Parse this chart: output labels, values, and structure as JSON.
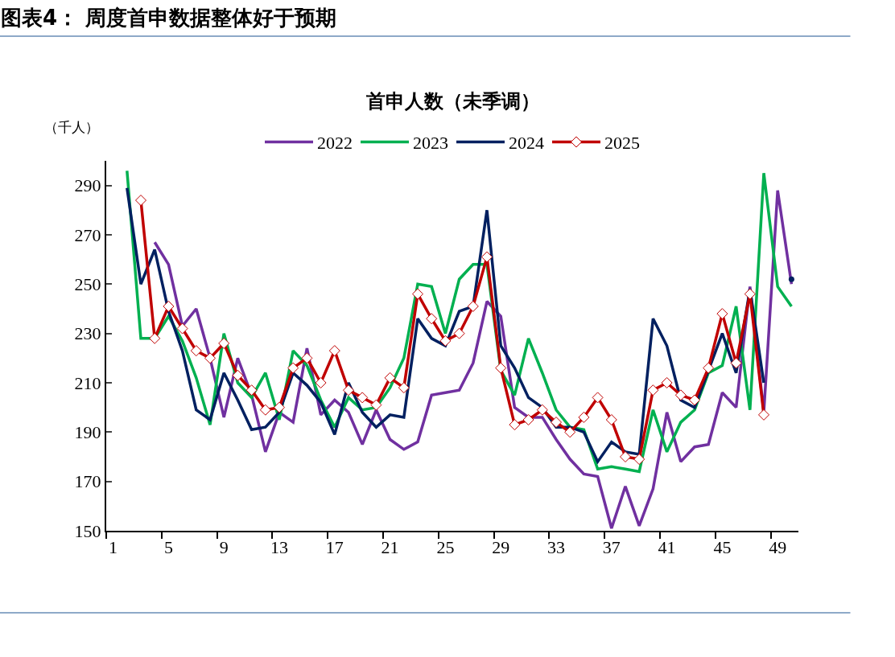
{
  "chart_data": {
    "type": "line",
    "title": "图表4： 周度首申数据整体好于预期",
    "subtitle": "首申人数（未季调）",
    "ylabel": "（千人）",
    "categories": [
      "1",
      null,
      null,
      null,
      "5",
      null,
      null,
      null,
      "9",
      null,
      null,
      null,
      "13",
      null,
      null,
      null,
      "17",
      null,
      null,
      null,
      "21",
      null,
      null,
      null,
      "25",
      null,
      null,
      null,
      "29",
      null,
      null,
      null,
      "33",
      null,
      null,
      null,
      "37",
      null,
      null,
      null,
      "41",
      null,
      null,
      null,
      "45",
      null,
      null,
      null,
      "49",
      null
    ],
    "ylim": [
      150,
      300
    ],
    "yticks": [
      150,
      170,
      190,
      210,
      230,
      250,
      270,
      290
    ],
    "legend": "top",
    "series": [
      {
        "name": "2022",
        "color": "#7030a0",
        "marker": "none",
        "values": [
          null,
          null,
          null,
          267,
          258,
          233,
          240,
          220,
          196,
          220,
          205,
          182,
          198,
          194,
          224,
          197,
          203,
          198,
          185,
          199,
          187,
          183,
          186,
          205,
          206,
          207,
          218,
          243,
          237,
          200,
          196,
          196,
          187,
          179,
          173,
          172,
          151,
          168,
          152,
          167,
          198,
          178,
          184,
          185,
          206,
          200,
          249,
          198,
          288,
          250
        ]
      },
      {
        "name": "2023",
        "color": "#00b050",
        "marker": "none",
        "values": [
          null,
          296,
          228,
          228,
          237,
          227,
          212,
          193,
          230,
          210,
          204,
          214,
          195,
          223,
          217,
          203,
          192,
          204,
          199,
          200,
          208,
          220,
          250,
          249,
          230,
          252,
          258,
          258,
          215,
          205,
          228,
          214,
          199,
          192,
          191,
          175,
          176,
          175,
          174,
          199,
          182,
          194,
          199,
          214,
          217,
          241,
          199,
          295,
          249,
          241
        ]
      },
      {
        "name": "2024",
        "color": "#002060",
        "marker": "none",
        "values": [
          null,
          289,
          250,
          264,
          239,
          223,
          199,
          195,
          214,
          203,
          191,
          192,
          198,
          214,
          209,
          202,
          189,
          210,
          198,
          192,
          197,
          196,
          236,
          228,
          225,
          239,
          241,
          280,
          225,
          216,
          204,
          200,
          192,
          192,
          190,
          178,
          186,
          182,
          181,
          236,
          225,
          203,
          200,
          215,
          230,
          214,
          248,
          210,
          null,
          252
        ]
      },
      {
        "name": "2025",
        "color": "#c00000",
        "marker": "diamond",
        "values": [
          null,
          null,
          284,
          228,
          241,
          232,
          223,
          220,
          226,
          213,
          207,
          199,
          200,
          216,
          220,
          210,
          223,
          207,
          204,
          201,
          212,
          208,
          246,
          236,
          227,
          230,
          241,
          261,
          216,
          193,
          195,
          199,
          194,
          190,
          196,
          204,
          195,
          180,
          179,
          207,
          210,
          205,
          203,
          216,
          238,
          218,
          246,
          197,
          null,
          null
        ]
      }
    ]
  }
}
